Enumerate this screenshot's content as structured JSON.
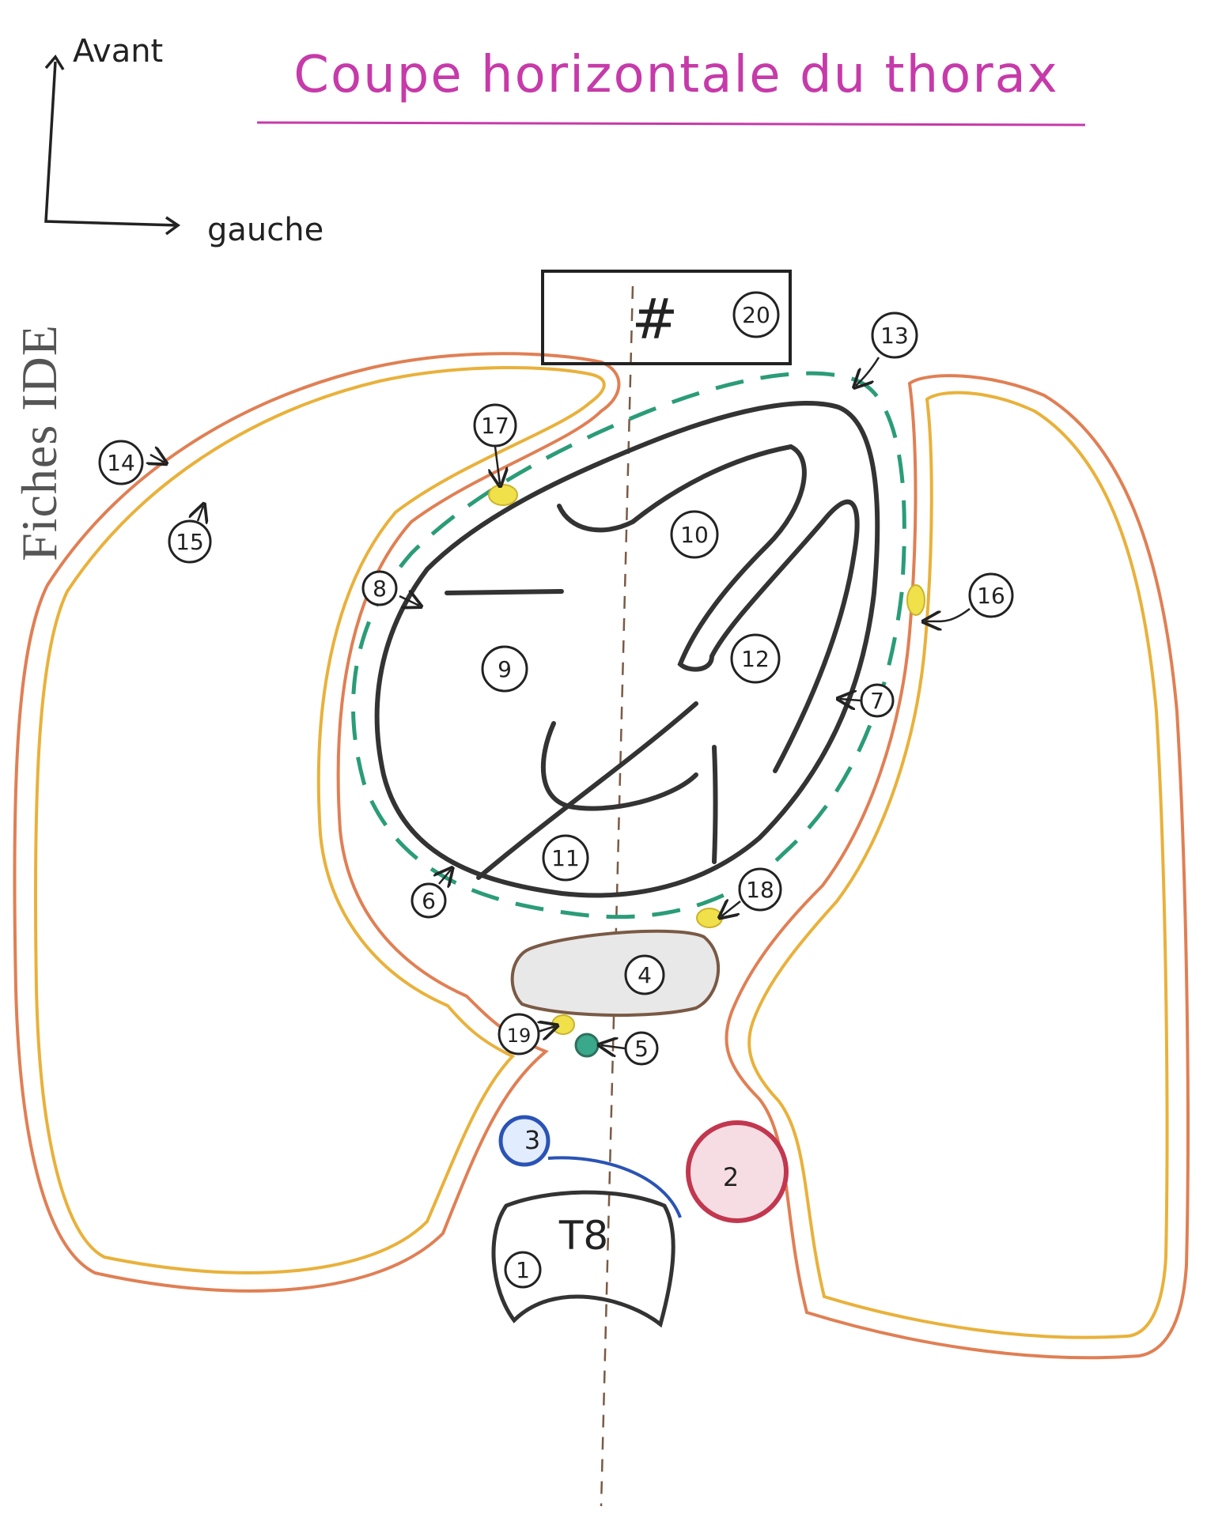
{
  "header": {
    "title": "Coupe horizontale du thorax"
  },
  "orientation": {
    "front_label": "Avant",
    "left_label": "gauche"
  },
  "watermark": "Fiches IDE",
  "labels": {
    "n1": "1",
    "n2": "2",
    "n3": "3",
    "n4": "4",
    "n5": "5",
    "n6": "6",
    "n7": "7",
    "n8": "8",
    "n9": "9",
    "n10": "10",
    "n11": "11",
    "n12": "12",
    "n13": "13",
    "n14": "14",
    "n15": "15",
    "n16": "16",
    "n17": "17",
    "n18": "18",
    "n19": "19",
    "n20": "20",
    "vertebra": "T8",
    "sternum_symbol": "#"
  },
  "colors": {
    "title": "#c63aa9",
    "pleura_outer": "#e07f54",
    "pleura_inner": "#e9b13b",
    "pericardium": "#2a9c78",
    "heart_outline": "#333333",
    "node_yellow": "#f0e04a",
    "aorta": "#c2374f",
    "azygos": "#2a53b5",
    "esophagus": "#7a5a45",
    "thoracic_duct": "#2e8c7a"
  }
}
